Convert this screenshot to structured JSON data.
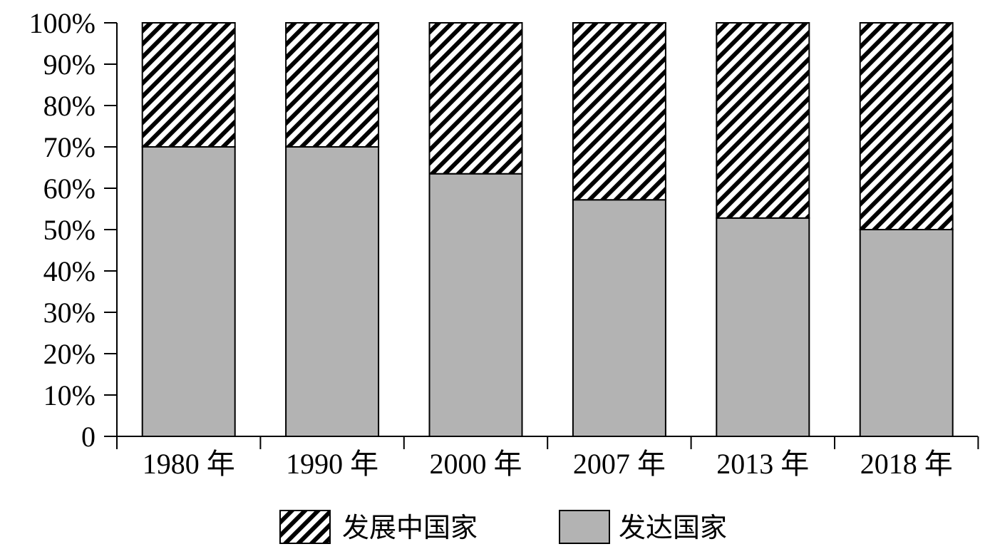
{
  "chart_data": {
    "type": "bar",
    "stacked": true,
    "categories": [
      "1980 年",
      "1990 年",
      "2000 年",
      "2007 年",
      "2013 年",
      "2018 年"
    ],
    "series": [
      {
        "name": "发达国家",
        "values": [
          70,
          70,
          63.5,
          57.2,
          52.8,
          50
        ],
        "fill": "#b3b3b3",
        "pattern": "solid"
      },
      {
        "name": "发展中国家",
        "values": [
          30,
          30,
          36.5,
          42.8,
          47.2,
          50
        ],
        "fill": "#000000",
        "pattern": "diagonal-hatch"
      }
    ],
    "y_ticks": [
      "0",
      "10%",
      "20%",
      "30%",
      "40%",
      "50%",
      "60%",
      "70%",
      "80%",
      "90%",
      "100%"
    ],
    "ylim": [
      0,
      100
    ],
    "title": "",
    "xlabel": "",
    "ylabel": "",
    "grid": false,
    "legend": {
      "position": "bottom",
      "items": [
        "发展中国家",
        "发达国家"
      ]
    }
  }
}
